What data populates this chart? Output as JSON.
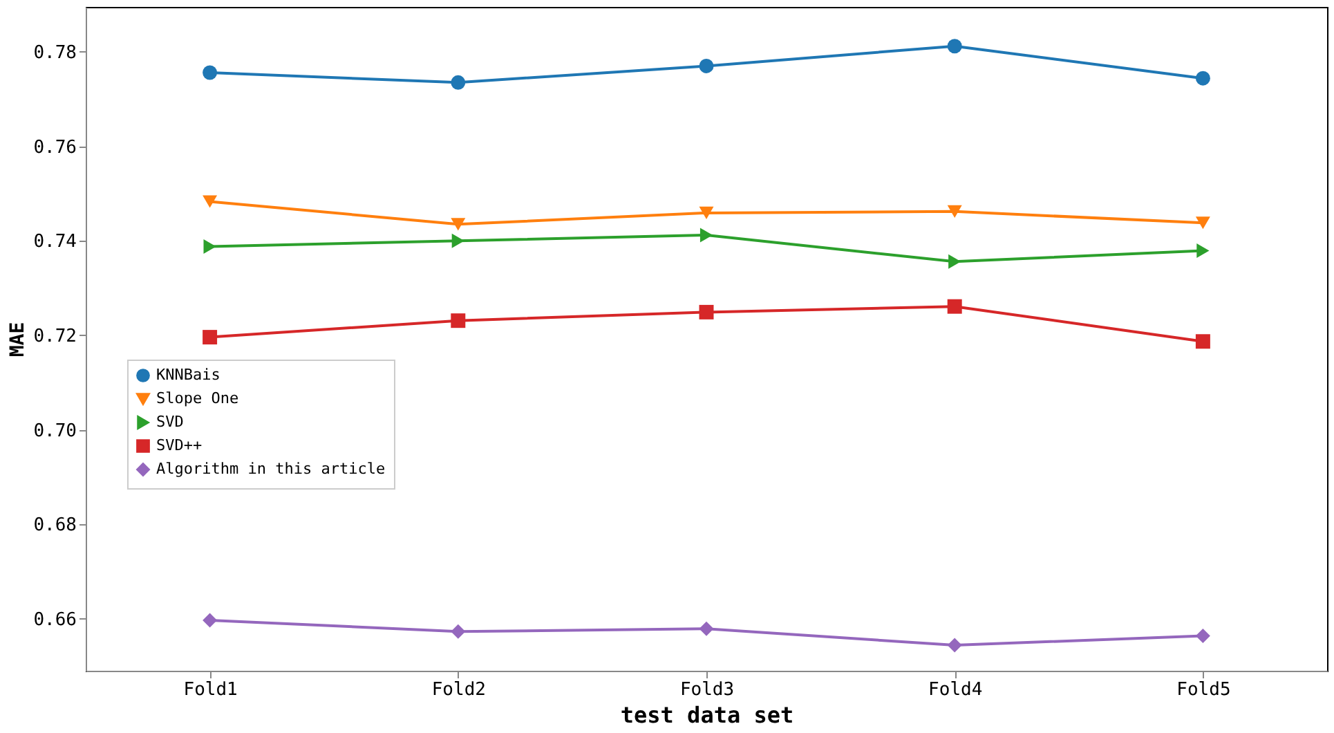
{
  "chart_data": {
    "type": "line",
    "xlabel": "test data set",
    "ylabel": "MAE",
    "categories": [
      "Fold1",
      "Fold2",
      "Fold3",
      "Fold4",
      "Fold5"
    ],
    "ylim": [
      0.649,
      0.7895
    ],
    "yticks": [
      0.66,
      0.68,
      {
        "value": 0.7,
        "label": "0.70"
      },
      0.72,
      0.74,
      0.76,
      0.78
    ],
    "grid": false,
    "legend": "bottom left",
    "series": [
      {
        "name": "KNNBais",
        "color": "#1f77b4",
        "marker": "circle",
        "values": [
          0.7756,
          0.7735,
          0.777,
          0.7812,
          0.7744
        ]
      },
      {
        "name": "Slope One",
        "color": "#ff7f0e",
        "marker": "triangle-down",
        "values": [
          0.7483,
          0.7435,
          0.7459,
          0.7462,
          0.7438
        ]
      },
      {
        "name": "SVD",
        "color": "#2ca02c",
        "marker": "triangle-right",
        "values": [
          0.7388,
          0.74,
          0.7412,
          0.7356,
          0.7379
        ]
      },
      {
        "name": "SVD++",
        "color": "#d62728",
        "marker": "square",
        "values": [
          0.7196,
          0.7231,
          0.7249,
          0.7261,
          0.7187
        ]
      },
      {
        "name": "Algorithm in this article",
        "color": "#9467bd",
        "marker": "diamond",
        "values": [
          0.6597,
          0.6573,
          0.6579,
          0.6544,
          0.6564
        ]
      }
    ]
  }
}
